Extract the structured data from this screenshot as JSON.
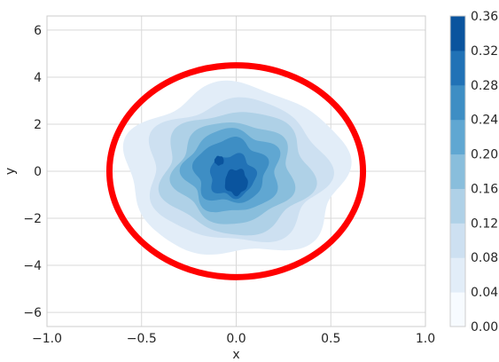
{
  "chart_data": {
    "type": "contour",
    "title": "",
    "xlabel": "x",
    "ylabel": "y",
    "xlim": [
      -1.0,
      1.0
    ],
    "ylim": [
      -6.6,
      6.6
    ],
    "x_ticks": [
      "−1.0",
      "−0.5",
      "0.0",
      "0.5",
      "1.0"
    ],
    "x_tick_values": [
      -1.0,
      -0.5,
      0.0,
      0.5,
      1.0
    ],
    "y_ticks": [
      "−6",
      "−4",
      "−2",
      "0",
      "2",
      "4",
      "6"
    ],
    "y_tick_values": [
      -6,
      -4,
      -2,
      0,
      2,
      4,
      6
    ],
    "grid": true,
    "colorbar": {
      "levels": [
        0.0,
        0.04,
        0.08,
        0.12,
        0.16,
        0.2,
        0.24,
        0.28,
        0.32,
        0.36
      ],
      "labels": [
        "0.00",
        "0.04",
        "0.08",
        "0.12",
        "0.16",
        "0.20",
        "0.24",
        "0.28",
        "0.32",
        "0.36"
      ],
      "colors": [
        "#f7fbff",
        "#e2edf8",
        "#cde0f1",
        "#afd1e7",
        "#89bedc",
        "#60a7d2",
        "#3e8ec4",
        "#2172b6",
        "#0a549e",
        "#08306b"
      ],
      "colormap": "Blues"
    },
    "density_contours": [
      {
        "level": 0.04,
        "cx": 0.0,
        "cy": 0.0,
        "rx": 0.58,
        "ry": 3.6,
        "wobble": 0.06
      },
      {
        "level": 0.08,
        "cx": 0.0,
        "cy": 0.0,
        "rx": 0.47,
        "ry": 3.0,
        "wobble": 0.07
      },
      {
        "level": 0.12,
        "cx": 0.0,
        "cy": -0.05,
        "rx": 0.39,
        "ry": 2.6,
        "wobble": 0.07
      },
      {
        "level": 0.16,
        "cx": -0.01,
        "cy": -0.05,
        "rx": 0.31,
        "ry": 2.15,
        "wobble": 0.07
      },
      {
        "level": 0.2,
        "cx": -0.02,
        "cy": 0.0,
        "rx": 0.25,
        "ry": 1.75,
        "wobble": 0.08
      },
      {
        "level": 0.24,
        "cx": -0.03,
        "cy": 0.0,
        "rx": 0.19,
        "ry": 1.35,
        "wobble": 0.08
      },
      {
        "level": 0.28,
        "cx": -0.02,
        "cy": -0.2,
        "rx": 0.12,
        "ry": 0.9,
        "wobble": 0.09
      },
      {
        "level": 0.32,
        "cx": 0.0,
        "cy": -0.45,
        "rx": 0.06,
        "ry": 0.55,
        "wobble": 0.08
      },
      {
        "level": 0.32,
        "cx": -0.09,
        "cy": 0.45,
        "rx": 0.025,
        "ry": 0.2,
        "wobble": 0.05
      }
    ],
    "annotation_ellipse": {
      "cx": 0.0,
      "cy": 0.0,
      "rx": 0.67,
      "ry": 4.5,
      "color": "#ff0000"
    }
  }
}
